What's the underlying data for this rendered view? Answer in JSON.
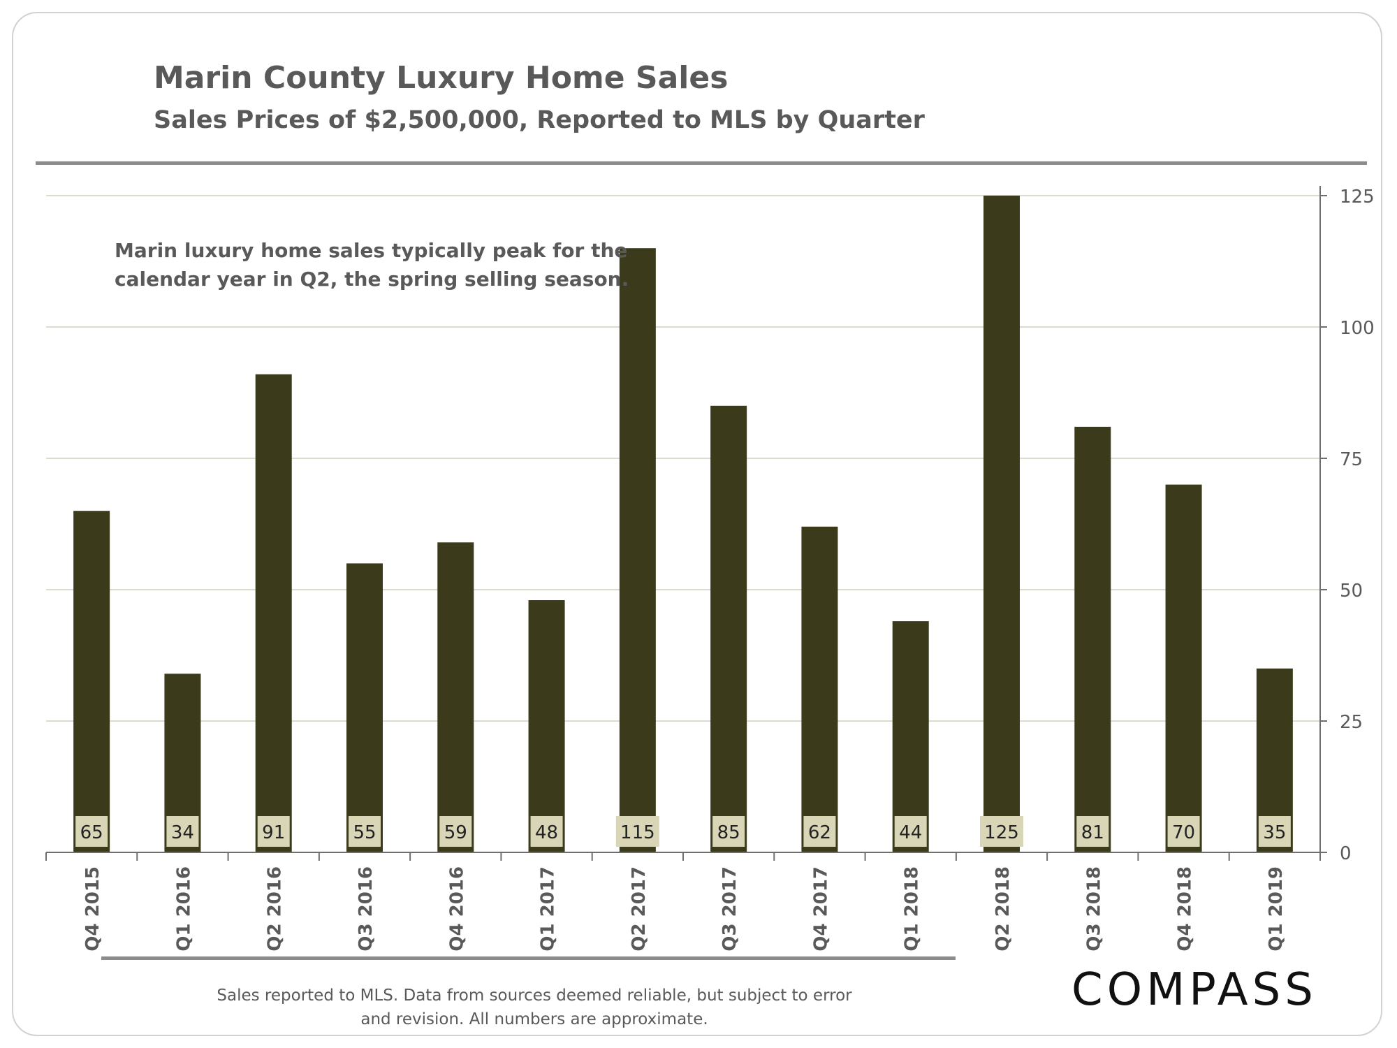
{
  "header": {
    "title": "Marin County Luxury Home Sales",
    "subtitle": "Sales Prices of $2,500,000, Reported to MLS by Quarter"
  },
  "annotation": {
    "line1": "Marin luxury home sales typically peak for the",
    "line2": "calendar year in Q2, the spring selling season."
  },
  "footer": {
    "line1": "Sales reported to MLS. Data from sources deemed reliable, but subject to error",
    "line2": "and revision. All numbers are approximate."
  },
  "logo": {
    "text": "COMPASS"
  },
  "colors": {
    "bar": "#3b3b1b",
    "label_box": "#d8d6b6",
    "grid": "#cfcfc0",
    "axis": "#6e6e6e",
    "text": "#595959"
  },
  "chart_data": {
    "type": "bar",
    "categories": [
      "Q4 2015",
      "Q1 2016",
      "Q2 2016",
      "Q3 2016",
      "Q4 2016",
      "Q1 2017",
      "Q2 2017",
      "Q3 2017",
      "Q4 2017",
      "Q1 2018",
      "Q2 2018",
      "Q3 2018",
      "Q4 2018",
      "Q1 2019"
    ],
    "values": [
      65,
      34,
      91,
      55,
      59,
      48,
      115,
      85,
      62,
      44,
      125,
      81,
      70,
      35
    ],
    "title": "Marin County Luxury Home Sales",
    "subtitle": "Sales Prices of $2,500,000, Reported to MLS by Quarter",
    "xlabel": "",
    "ylabel": "",
    "ylim": [
      0,
      125
    ],
    "yticks": [
      0,
      25,
      50,
      75,
      100,
      125
    ],
    "y_axis_side": "right",
    "x_labels_rotated": true,
    "grid": true,
    "data_labels": "inside-base"
  }
}
